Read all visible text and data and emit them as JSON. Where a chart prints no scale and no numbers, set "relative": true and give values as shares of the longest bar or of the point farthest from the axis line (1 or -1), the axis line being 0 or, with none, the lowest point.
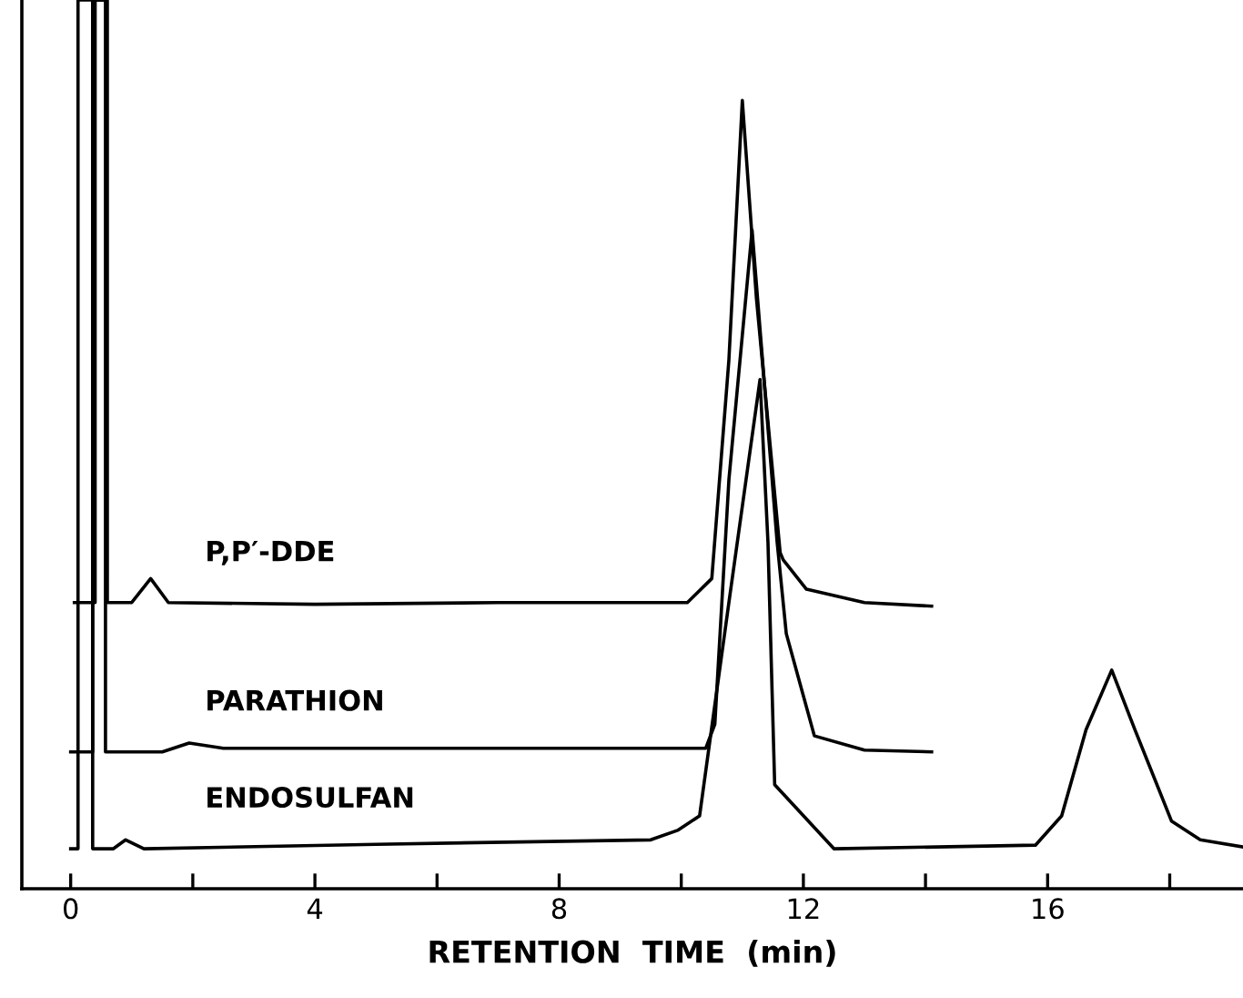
{
  "chart_data": {
    "type": "line",
    "relative": true,
    "xlabel": "RETENTION  TIME  (min)",
    "xlim": [
      -0.8,
      19.2
    ],
    "xticks": [
      0,
      {
        "value": 2,
        "label": null
      },
      4,
      {
        "value": 6,
        "label": null
      },
      8,
      {
        "value": 10,
        "label": null
      },
      12,
      {
        "value": 14,
        "label": null
      },
      16,
      {
        "value": 18,
        "label": null
      }
    ],
    "grid": false,
    "legend": false,
    "marker": "none",
    "line_style": "solid",
    "series": [
      {
        "name": "P,P′-DDE",
        "color": "#000000",
        "x": [
          0.06,
          0.4,
          0.4,
          0.6,
          0.6,
          1.0,
          1.31,
          1.6,
          4,
          7,
          10.1,
          10.5,
          10.78,
          11.0,
          11.23,
          11.62,
          11.67,
          12.05,
          13,
          14.1
        ],
        "values": [
          0.322,
          0.322,
          1,
          1,
          0.322,
          0.322,
          0.349,
          0.322,
          0.32,
          0.322,
          0.322,
          0.349,
          0.595,
          0.887,
          0.665,
          0.378,
          0.37,
          0.337,
          0.322,
          0.318
        ]
      },
      {
        "name": "PARATHION",
        "color": "#000000",
        "x": [
          0.0,
          0.36,
          0.36,
          0.57,
          0.57,
          1.5,
          1.94,
          2.5,
          6,
          10.4,
          10.55,
          10.78,
          11.16,
          11.57,
          11.72,
          12.18,
          13,
          14.1
        ],
        "values": [
          0.154,
          0.154,
          1,
          1,
          0.154,
          0.154,
          0.164,
          0.158,
          0.158,
          0.158,
          0.185,
          0.46,
          0.741,
          0.39,
          0.287,
          0.172,
          0.156,
          0.154
        ]
      },
      {
        "name": "ENDOSULFAN",
        "color": "#000000",
        "x": [
          0.0,
          0.12,
          0.12,
          0.36,
          0.36,
          0.7,
          0.9,
          1.2,
          5,
          9.5,
          9.95,
          10.3,
          10.78,
          11.29,
          11.42,
          11.53,
          12.5,
          15.8,
          16.23,
          16.63,
          17.05,
          17.43,
          18.03,
          18.5,
          19.2
        ],
        "values": [
          0.045,
          0.045,
          1,
          1,
          0.045,
          0.045,
          0.055,
          0.045,
          0.05,
          0.055,
          0.066,
          0.082,
          0.322,
          0.573,
          0.39,
          0.117,
          0.045,
          0.049,
          0.082,
          0.179,
          0.246,
          0.179,
          0.076,
          0.055,
          0.047
        ]
      }
    ]
  }
}
